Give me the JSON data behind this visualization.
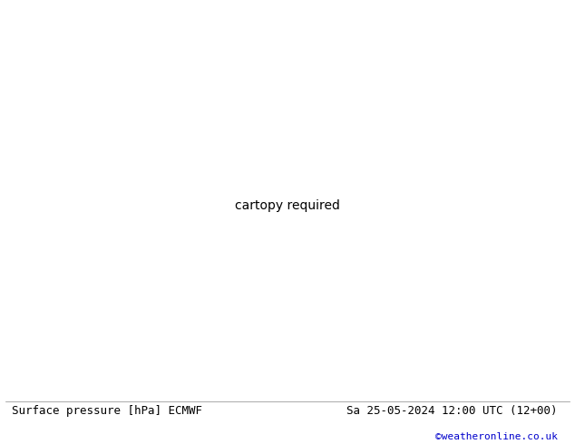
{
  "title_left": "Surface pressure [hPa] ECMWF",
  "title_right": "Sa 25-05-2024 12:00 UTC (12+00)",
  "credit": "©weatheronline.co.uk",
  "bg_color": "#ffffff",
  "ocean_color": "#d0dce8",
  "land_color": "#c8dca0",
  "glacier_color": "#aabbcc",
  "contour_color_low": "#0000cc",
  "contour_color_high": "#cc0000",
  "contour_color_1013": "#000000",
  "text_color_left": "#000000",
  "text_color_right": "#000000",
  "credit_color": "#0000cc",
  "fig_width": 6.34,
  "fig_height": 4.9,
  "dpi": 100,
  "font_size_title": 9.0,
  "font_size_credit": 8.0
}
